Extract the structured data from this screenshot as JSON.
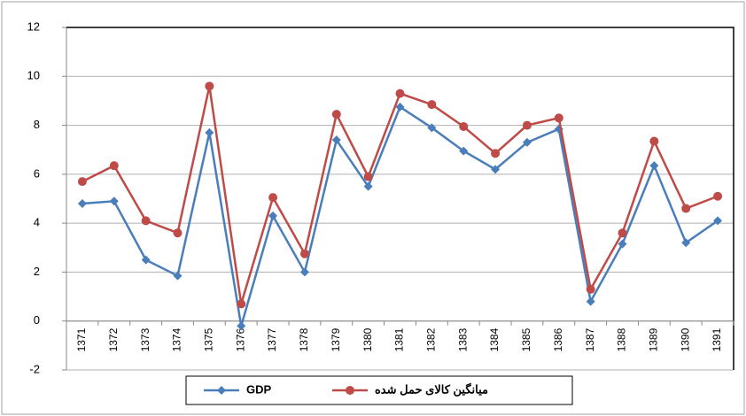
{
  "chart_data": {
    "type": "line",
    "categories": [
      "1371",
      "1372",
      "1373",
      "1374",
      "1375",
      "1376",
      "1377",
      "1378",
      "1379",
      "1380",
      "1381",
      "1382",
      "1383",
      "1384",
      "1385",
      "1386",
      "1387",
      "1388",
      "1389",
      "1390",
      "1391"
    ],
    "series": [
      {
        "name": "GDP",
        "color": "#4a7ebb",
        "marker": "diamond",
        "values": [
          4.8,
          4.9,
          2.5,
          1.85,
          7.7,
          -0.2,
          4.3,
          2.0,
          7.4,
          5.5,
          8.75,
          7.9,
          6.95,
          6.2,
          7.3,
          7.85,
          0.8,
          3.15,
          6.35,
          3.2,
          4.1
        ]
      },
      {
        "name": "میانگین کالای حمل شده",
        "color": "#be4b48",
        "marker": "circle",
        "values": [
          5.7,
          6.35,
          4.1,
          3.6,
          9.6,
          0.7,
          5.05,
          2.75,
          8.45,
          5.9,
          9.3,
          8.85,
          7.95,
          6.85,
          8.0,
          8.3,
          1.3,
          3.6,
          7.35,
          4.6,
          5.1
        ]
      }
    ],
    "ylim": [
      -2,
      12
    ],
    "yticks": [
      -2,
      0,
      2,
      4,
      6,
      8,
      10,
      12
    ],
    "grid": true
  }
}
